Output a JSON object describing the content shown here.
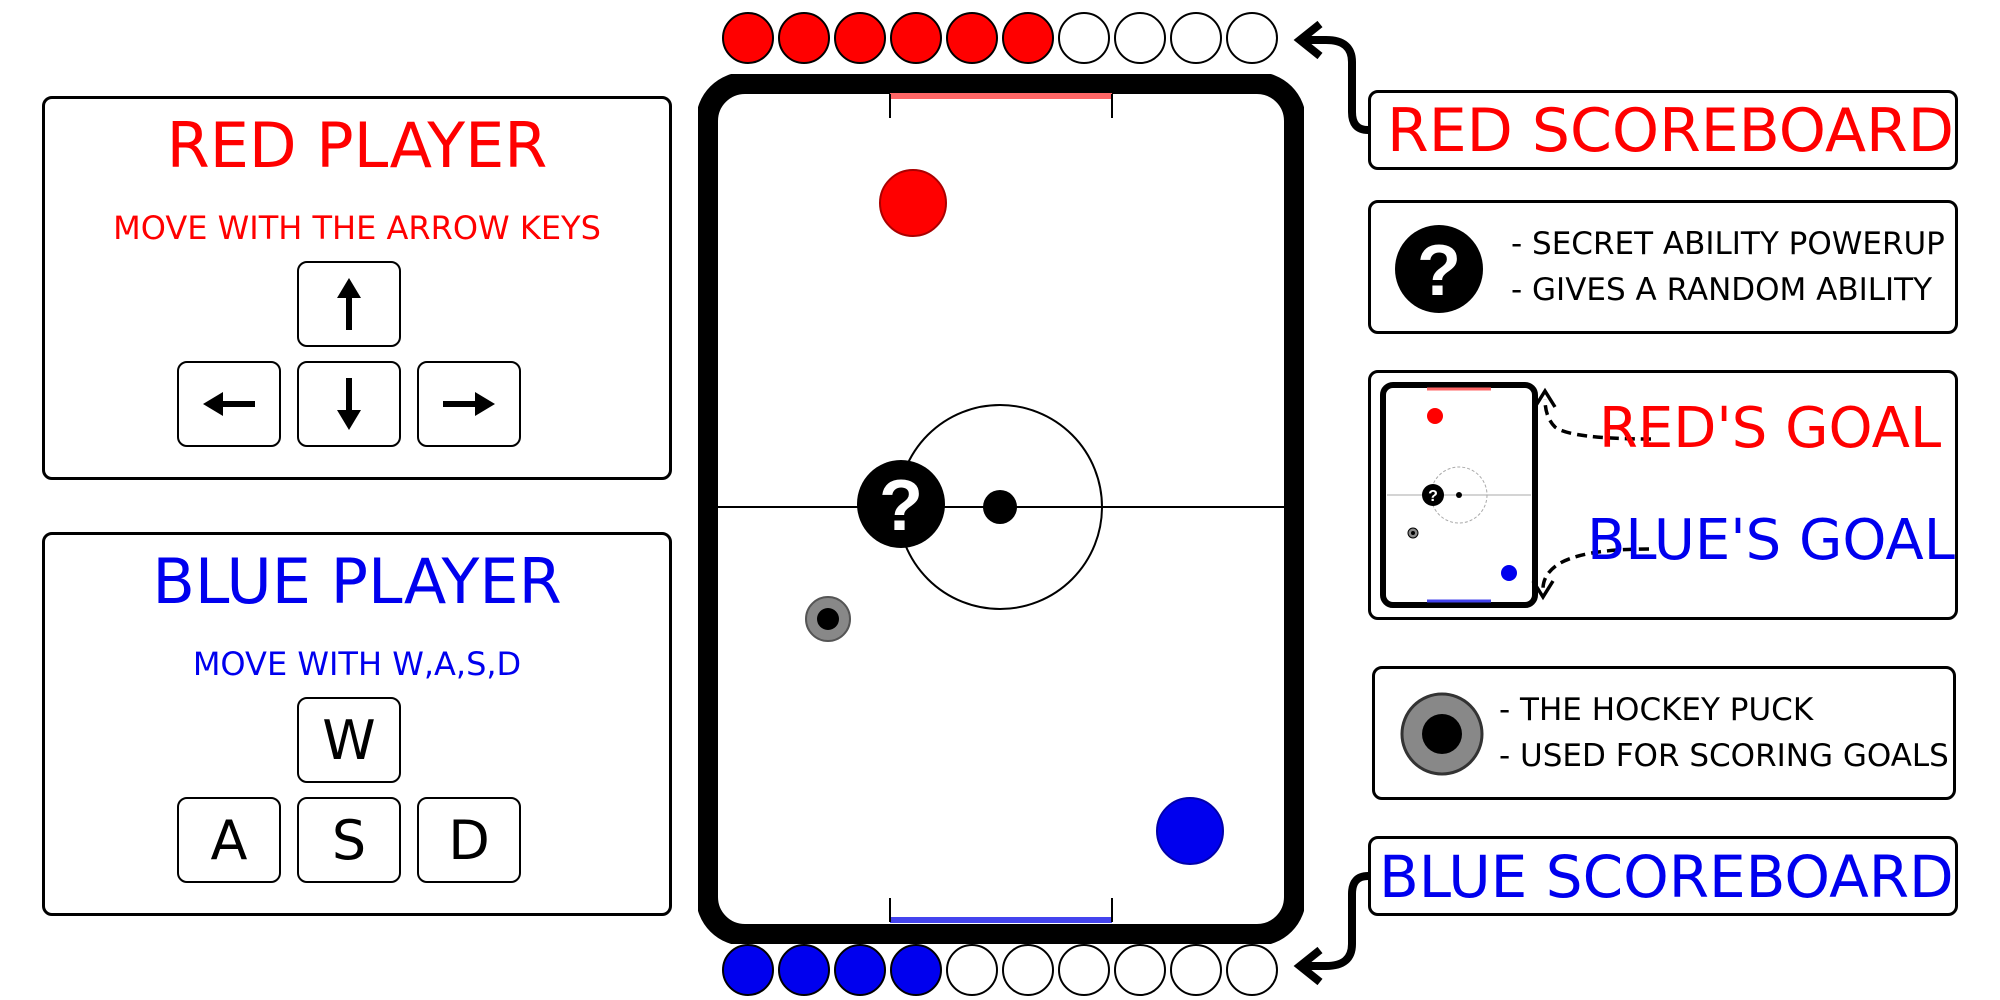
{
  "colors": {
    "red": "#ff0000",
    "blue": "#0000ee",
    "puck": "#888888",
    "black": "#000000"
  },
  "red_player": {
    "title": "RED PLAYER",
    "subtitle": "MOVE WITH THE ARROW KEYS",
    "keys": [
      {
        "icon": "arrow-up-icon"
      },
      {
        "icon": "arrow-left-icon"
      },
      {
        "icon": "arrow-down-icon"
      },
      {
        "icon": "arrow-right-icon"
      }
    ]
  },
  "blue_player": {
    "title": "BLUE PLAYER",
    "subtitle": "MOVE WITH W,A,S,D",
    "keys": [
      "W",
      "A",
      "S",
      "D"
    ]
  },
  "scoreboards": {
    "red": {
      "label": "RED SCOREBOARD",
      "filled": 6,
      "total": 10
    },
    "blue": {
      "label": "BLUE SCOREBOARD",
      "filled": 4,
      "total": 10
    }
  },
  "legend": {
    "powerup": {
      "icon": "question-mark-icon",
      "glyph": "?",
      "line1": "- SECRET ABILITY POWERUP",
      "line2": "- GIVES A RANDOM ABILITY"
    },
    "goals": {
      "red": "RED'S GOAL",
      "blue": "BLUE'S GOAL"
    },
    "puck": {
      "line1": "- THE HOCKEY PUCK",
      "line2": "- USED FOR SCORING GOALS"
    }
  },
  "rink": {
    "powerup_glyph": "?"
  }
}
